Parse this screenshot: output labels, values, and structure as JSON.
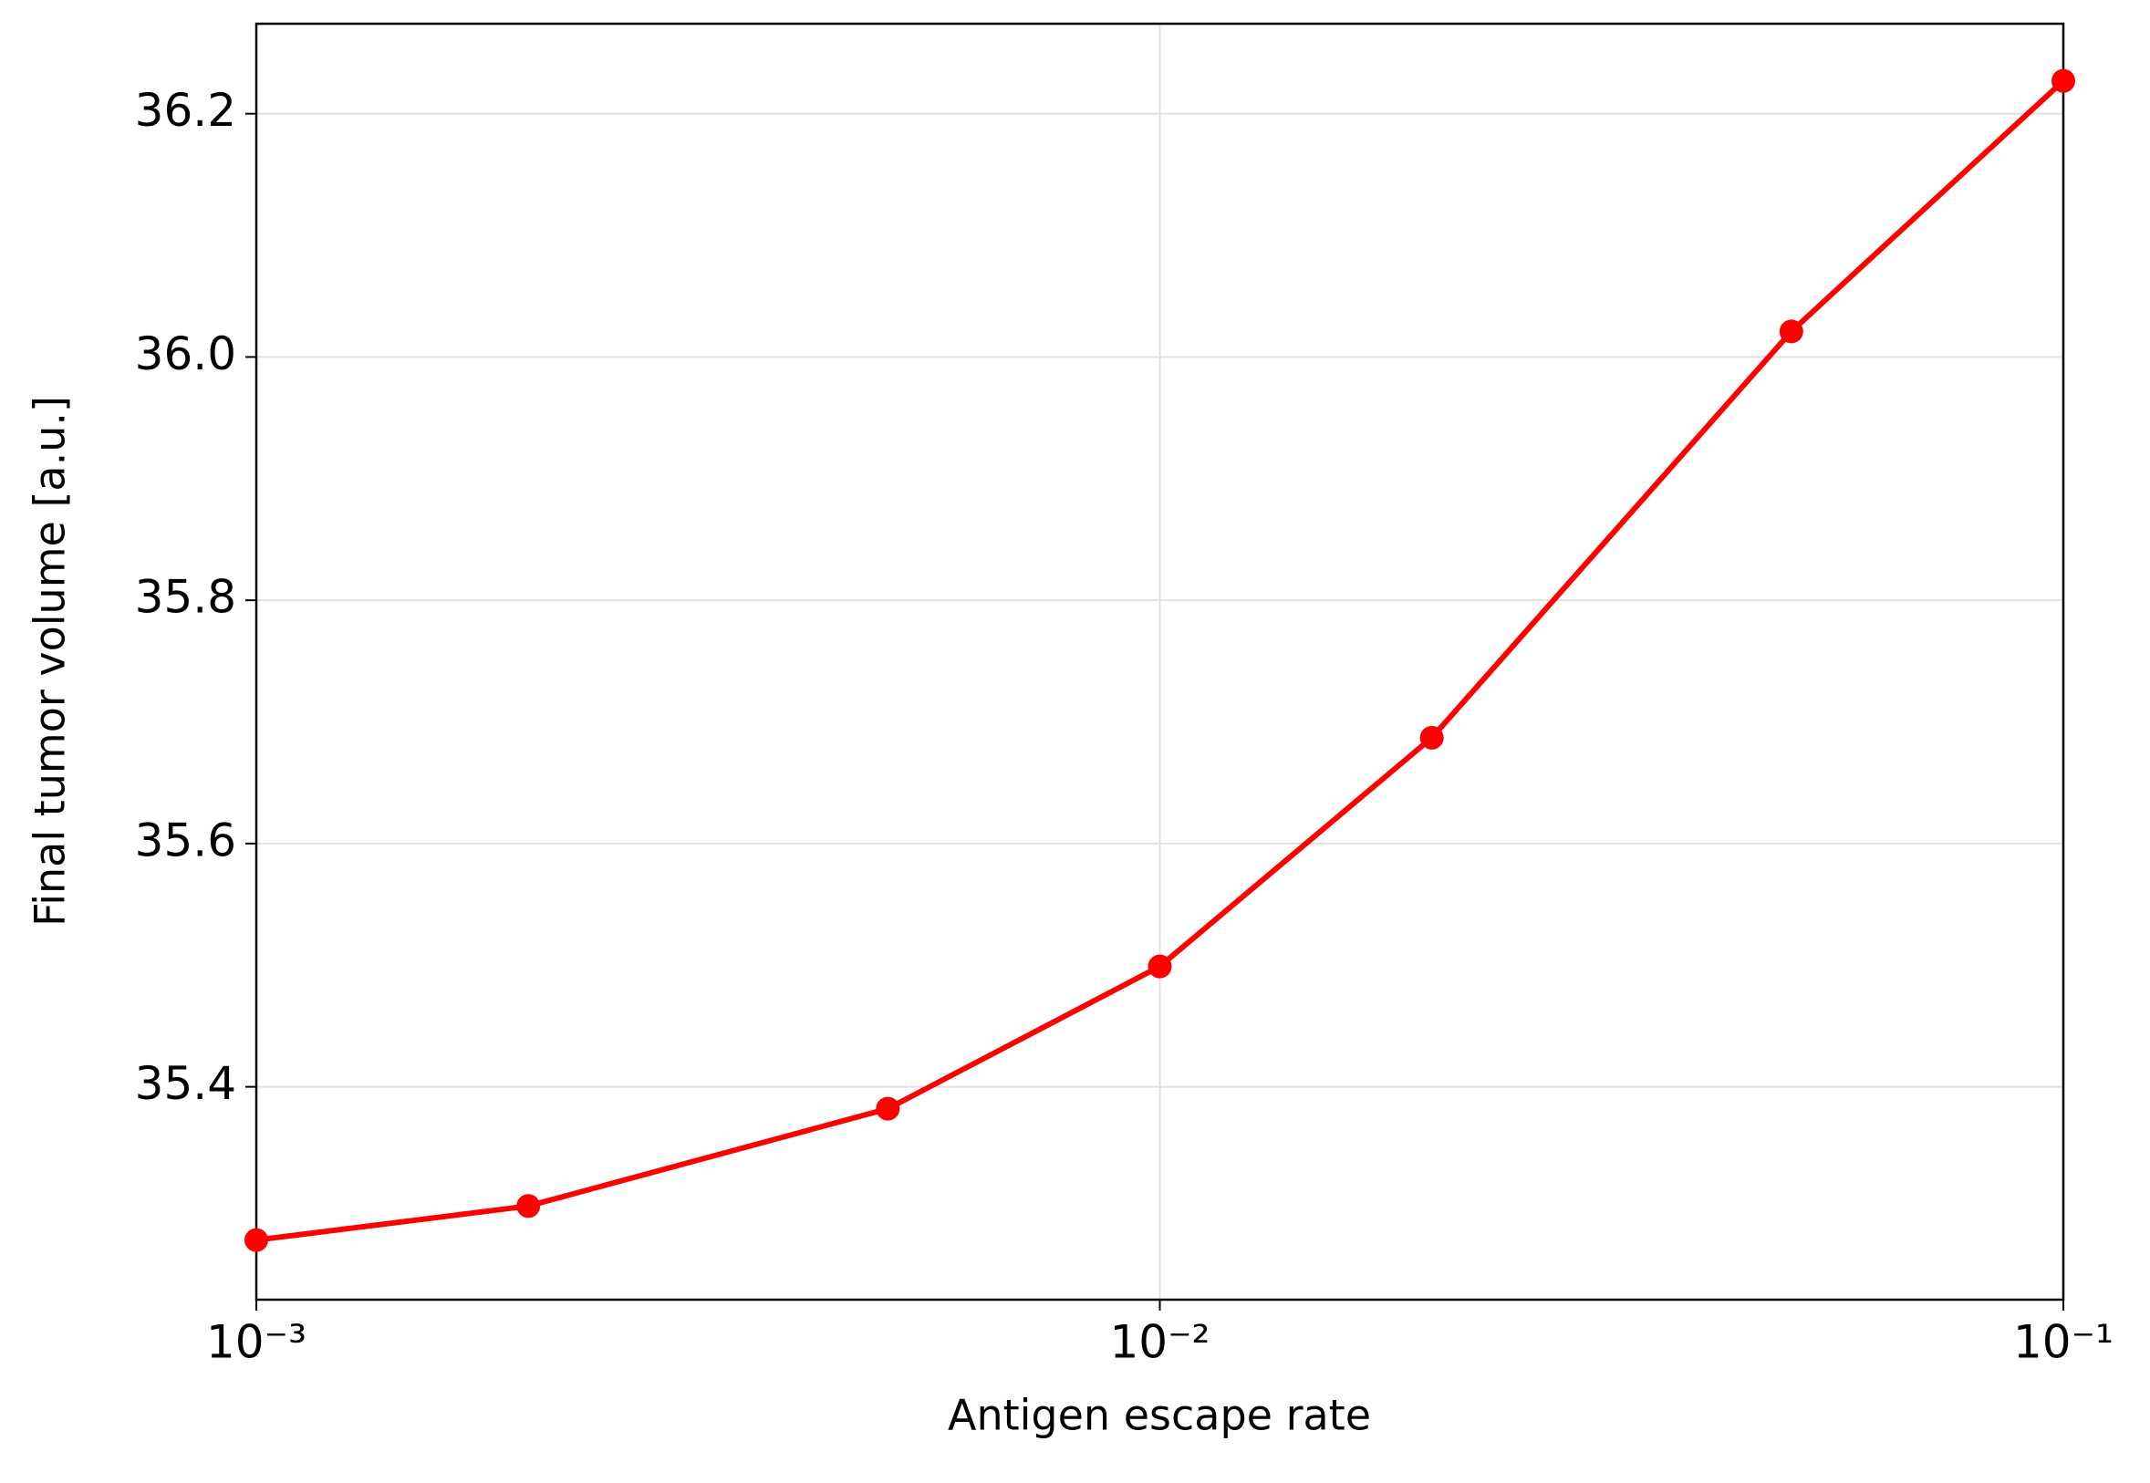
{
  "chart_data": {
    "type": "line",
    "x_label": "Antigen escape rate",
    "y_label": "Final tumor volume [a.u.]",
    "x": [
      0.001,
      0.002,
      0.005,
      0.01,
      0.02,
      0.05,
      0.1
    ],
    "series": [
      {
        "name": "Final tumor volume",
        "color": "#ff0000",
        "values": [
          35.274,
          35.302,
          35.382,
          35.499,
          35.687,
          36.021,
          36.227
        ]
      }
    ],
    "xscale": "log",
    "xlim": [
      0.001,
      0.1
    ],
    "xticks": [
      {
        "value": 0.001,
        "label": "10⁻³"
      },
      {
        "value": 0.01,
        "label": "10⁻²"
      },
      {
        "value": 0.1,
        "label": "10⁻¹"
      }
    ],
    "ylim": [
      35.225,
      36.274
    ],
    "yticks": [
      {
        "value": 35.4,
        "label": "35.4"
      },
      {
        "value": 35.6,
        "label": "35.6"
      },
      {
        "value": 35.8,
        "label": "35.8"
      },
      {
        "value": 36.0,
        "label": "36.0"
      },
      {
        "value": 36.2,
        "label": "36.2"
      }
    ],
    "grid": true
  }
}
